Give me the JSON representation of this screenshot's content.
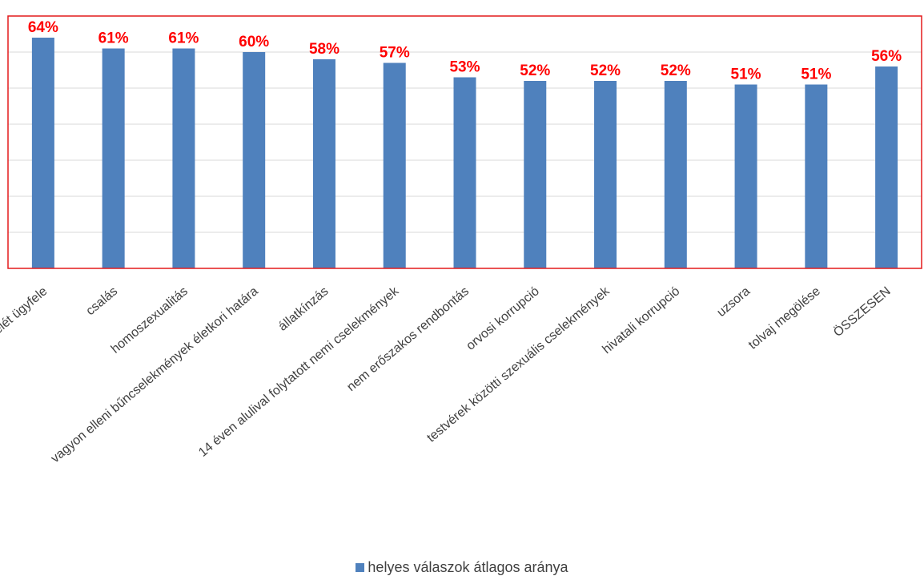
{
  "chart_data": {
    "type": "bar",
    "categories": [
      "ügyvéd ölte meg az ügyfelét ügyfele",
      "csalás",
      "homoszexualitás",
      "vagyon elleni bűncselekmények életkori határa",
      "állatkínzás",
      "14 éven alulival folytatott nemi cselekmények",
      "nem erőszakos rendbontás",
      "orvosi korrupció",
      "testvérek közötti szexuális cselekmények",
      "hivatali korrupció",
      "uzsora",
      "tolvaj megölése",
      "ÖSSZESEN"
    ],
    "series": [
      {
        "name": "helyes válaszok átlagos aránya",
        "values": [
          64,
          61,
          61,
          60,
          58,
          57,
          53,
          52,
          52,
          52,
          51,
          51,
          56
        ],
        "labels": [
          "64%",
          "61%",
          "61%",
          "60%",
          "58%",
          "57%",
          "53%",
          "52%",
          "52%",
          "52%",
          "51%",
          "51%",
          "56%"
        ]
      }
    ],
    "ylim": [
      0,
      70
    ],
    "grid": true,
    "legend_position": "bottom",
    "bar_color": "#4f81bd",
    "data_label_color": "#ff0000",
    "frame_color": "#e31a1c"
  }
}
